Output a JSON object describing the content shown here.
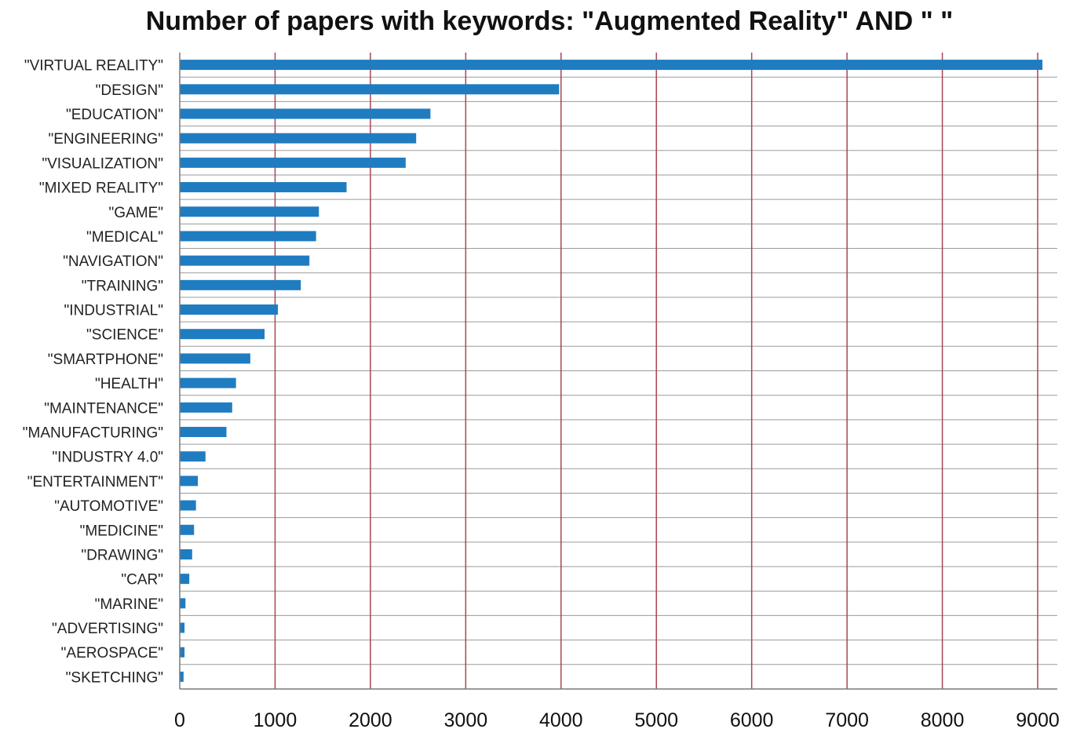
{
  "chart_data": {
    "type": "bar",
    "orientation": "horizontal",
    "title": "Number of papers with keywords: \"Augmented Reality\" AND \" \"",
    "categories": [
      "\"VIRTUAL REALITY\"",
      "\"DESIGN\"",
      "\"EDUCATION\"",
      "\"ENGINEERING\"",
      "\"VISUALIZATION\"",
      "\"MIXED REALITY\"",
      "\"GAME\"",
      "\"MEDICAL\"",
      "\"NAVIGATION\"",
      "\"TRAINING\"",
      "\"INDUSTRIAL\"",
      "\"SCIENCE\"",
      "\"SMARTPHONE\"",
      "\"HEALTH\"",
      "\"MAINTENANCE\"",
      "\"MANUFACTURING\"",
      "\"INDUSTRY 4.0\"",
      "\"ENTERTAINMENT\"",
      "\"AUTOMOTIVE\"",
      "\"MEDICINE\"",
      "\"DRAWING\"",
      "\"CAR\"",
      "\"MARINE\"",
      "\"ADVERTISING\"",
      "\"AEROSPACE\"",
      "\"SKETCHING\""
    ],
    "values": [
      9050,
      3980,
      2630,
      2480,
      2370,
      1750,
      1460,
      1430,
      1360,
      1270,
      1030,
      890,
      740,
      590,
      550,
      490,
      270,
      190,
      170,
      150,
      130,
      100,
      60,
      50,
      50,
      40
    ],
    "xlim": [
      0,
      9000
    ],
    "xticks": [
      "0",
      "1000",
      "2000",
      "3000",
      "4000",
      "5000",
      "6000",
      "7000",
      "8000",
      "9000"
    ],
    "xlabel": "",
    "ylabel": "",
    "grid": "vertical major lines and horizontal category separators",
    "legend": "none"
  },
  "colors": {
    "bar": "#1F7CC1",
    "vertical_grid": "#A94551",
    "horizontal_grid": "#9A9A9A",
    "axis": "#7A7A7A"
  }
}
